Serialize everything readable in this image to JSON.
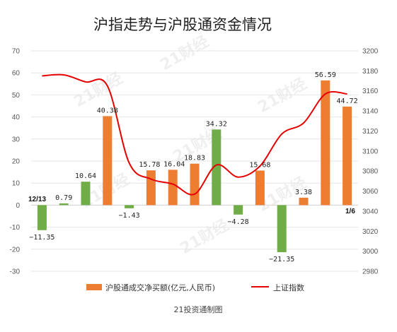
{
  "chart_data": {
    "type": "bar",
    "title": "沪指走势与沪股通资金情况",
    "source": "21投资通制图",
    "watermark": "21财经",
    "start_label": "12/13",
    "end_label": "1/6",
    "y_left_ticks": [
      70,
      60,
      50,
      40,
      30,
      20,
      10,
      0,
      -10,
      -20,
      -30
    ],
    "y_right_ticks": [
      3200,
      3180,
      3160,
      3140,
      3120,
      3100,
      3080,
      3060,
      3040,
      3020,
      3000,
      2980
    ],
    "ylim_left": [
      -30,
      70
    ],
    "ylim_right": [
      2980,
      3200
    ],
    "grid": true,
    "legend_position": "bottom",
    "series": [
      {
        "name": "沪股通成交净买额(亿元,人民币)",
        "kind": "bar",
        "values": [
          -11.35,
          0.79,
          10.64,
          40.38,
          -1.43,
          15.78,
          16.04,
          18.83,
          34.32,
          -4.28,
          15.68,
          -21.35,
          3.38,
          56.59,
          44.72
        ],
        "labels": [
          "-11.35",
          "0.79",
          "10.64",
          "40.38",
          "-1.43",
          "15.78",
          "16.04",
          "18.83",
          "34.32",
          "-4.28",
          "15.68",
          "-21.35",
          "3.38",
          "56.59",
          "44.72"
        ],
        "display_labels": [
          "−11.35",
          "0.79",
          "10.64",
          "40.38",
          "−1.43",
          "15.78",
          "16.04",
          "18.83",
          "34.32",
          "−4.28",
          "15.68",
          "−21.35",
          "3.38",
          "56.59",
          "44.72"
        ],
        "bar_colors": [
          "#70ad47",
          "#70ad47",
          "#70ad47",
          "#ed7d31",
          "#70ad47",
          "#ed7d31",
          "#ed7d31",
          "#ed7d31",
          "#70ad47",
          "#70ad47",
          "#ed7d31",
          "#70ad47",
          "#ed7d31",
          "#ed7d31",
          "#ed7d31"
        ]
      },
      {
        "name": "上证指数",
        "kind": "line",
        "axis": "right",
        "values": [
          3175,
          3176,
          3169,
          3165,
          3088,
          3072,
          3067,
          3057,
          3086,
          3074,
          3085,
          3117,
          3128,
          3157,
          3157
        ],
        "color": "#e60000"
      }
    ],
    "colors": {
      "orange": "#ed7d31",
      "green": "#70ad47",
      "line": "#e60000",
      "grid": "#e6e6e6"
    }
  }
}
